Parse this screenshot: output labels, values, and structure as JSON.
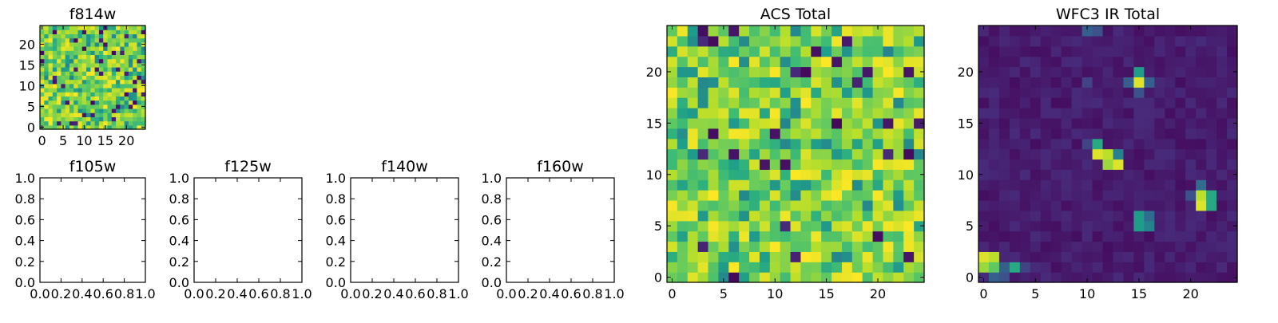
{
  "palette": {
    "low": "#440154",
    "mid": "#21918c",
    "high": "#fde725",
    "frame": "#000000",
    "background": "#ffffff"
  },
  "chart_data": [
    {
      "type": "heatmap",
      "title": "f814w",
      "grid": {
        "rows": 25,
        "cols": 25
      },
      "xlim": [
        -0.5,
        24.5
      ],
      "ylim": [
        -0.5,
        24.5
      ],
      "xticks": [
        0,
        5,
        10,
        15,
        20
      ],
      "yticks": [
        0,
        5,
        10,
        15,
        20
      ],
      "colormap": "viridis",
      "value_range": [
        0,
        1
      ],
      "pattern": "pixel noise, mostly high values"
    },
    {
      "type": "empty",
      "title": "f105w",
      "xlim": [
        0,
        1
      ],
      "ylim": [
        0,
        1
      ],
      "xticks": [
        "0.0",
        "0.2",
        "0.4",
        "0.6",
        "0.8",
        "1.0"
      ],
      "yticks": [
        "0.0",
        "0.2",
        "0.4",
        "0.6",
        "0.8",
        "1.0"
      ]
    },
    {
      "type": "empty",
      "title": "f125w",
      "xlim": [
        0,
        1
      ],
      "ylim": [
        0,
        1
      ],
      "xticks": [
        "0.0",
        "0.2",
        "0.4",
        "0.6",
        "0.8",
        "1.0"
      ],
      "yticks": [
        "0.0",
        "0.2",
        "0.4",
        "0.6",
        "0.8",
        "1.0"
      ]
    },
    {
      "type": "empty",
      "title": "f140w",
      "xlim": [
        0,
        1
      ],
      "ylim": [
        0,
        1
      ],
      "xticks": [
        "0.0",
        "0.2",
        "0.4",
        "0.6",
        "0.8",
        "1.0"
      ],
      "yticks": [
        "0.0",
        "0.2",
        "0.4",
        "0.6",
        "0.8",
        "1.0"
      ]
    },
    {
      "type": "empty",
      "title": "f160w",
      "xlim": [
        0,
        1
      ],
      "ylim": [
        0,
        1
      ],
      "xticks": [
        "0.0",
        "0.2",
        "0.4",
        "0.6",
        "0.8",
        "1.0"
      ],
      "yticks": [
        "0.0",
        "0.2",
        "0.4",
        "0.6",
        "0.8",
        "1.0"
      ]
    },
    {
      "type": "heatmap",
      "title": "ACS Total",
      "grid": {
        "rows": 25,
        "cols": 25
      },
      "xlim": [
        -0.5,
        24.5
      ],
      "ylim": [
        -0.5,
        24.5
      ],
      "xticks": [
        0,
        5,
        10,
        15,
        20
      ],
      "yticks": [
        0,
        5,
        10,
        15,
        20
      ],
      "colormap": "viridis",
      "value_range": [
        0,
        1
      ],
      "pattern": "pixel noise, mostly high values"
    },
    {
      "type": "heatmap",
      "title": "WFC3 IR Total",
      "grid": {
        "rows": 25,
        "cols": 25
      },
      "xlim": [
        -0.5,
        24.5
      ],
      "ylim": [
        -0.5,
        24.5
      ],
      "xticks": [
        0,
        5,
        10,
        15,
        20
      ],
      "yticks": [
        0,
        5,
        10,
        15,
        20
      ],
      "colormap": "viridis",
      "value_range": [
        0,
        1
      ],
      "background_level": 0.08,
      "hotspots": [
        {
          "col": 0,
          "row": 2,
          "value": 0.95
        },
        {
          "col": 1,
          "row": 2,
          "value": 0.9
        },
        {
          "col": 0,
          "row": 1,
          "value": 0.85
        },
        {
          "col": 1,
          "row": 1,
          "value": 0.75
        },
        {
          "col": 3,
          "row": 1,
          "value": 0.6
        },
        {
          "col": 2,
          "row": 1,
          "value": 0.3
        },
        {
          "col": 15,
          "row": 19,
          "value": 0.95
        },
        {
          "col": 15,
          "row": 20,
          "value": 0.55
        },
        {
          "col": 16,
          "row": 19,
          "value": 0.3
        },
        {
          "col": 14,
          "row": 19,
          "value": 0.3
        },
        {
          "col": 11,
          "row": 12,
          "value": 0.95
        },
        {
          "col": 12,
          "row": 12,
          "value": 0.9
        },
        {
          "col": 11,
          "row": 13,
          "value": 0.6
        },
        {
          "col": 12,
          "row": 11,
          "value": 0.85
        },
        {
          "col": 13,
          "row": 11,
          "value": 0.95
        },
        {
          "col": 13,
          "row": 12,
          "value": 0.45
        },
        {
          "col": 21,
          "row": 7,
          "value": 0.95
        },
        {
          "col": 21,
          "row": 8,
          "value": 0.9
        },
        {
          "col": 22,
          "row": 7,
          "value": 0.6
        },
        {
          "col": 22,
          "row": 8,
          "value": 0.6
        },
        {
          "col": 21,
          "row": 9,
          "value": 0.35
        },
        {
          "col": 20,
          "row": 8,
          "value": 0.25
        },
        {
          "col": 15,
          "row": 5,
          "value": 0.55
        },
        {
          "col": 16,
          "row": 5,
          "value": 0.45
        },
        {
          "col": 15,
          "row": 6,
          "value": 0.55
        },
        {
          "col": 16,
          "row": 6,
          "value": 0.35
        },
        {
          "col": 1,
          "row": 0,
          "value": 0.3
        },
        {
          "col": 2,
          "row": 0,
          "value": 0.25
        },
        {
          "col": 4,
          "row": 1,
          "value": 0.2
        },
        {
          "col": 15,
          "row": 18,
          "value": 0.25
        },
        {
          "col": 10,
          "row": 19,
          "value": 0.2
        },
        {
          "col": 10,
          "row": 13,
          "value": 0.2
        },
        {
          "col": 10,
          "row": 24,
          "value": 0.3
        },
        {
          "col": 11,
          "row": 24,
          "value": 0.25
        }
      ]
    }
  ]
}
